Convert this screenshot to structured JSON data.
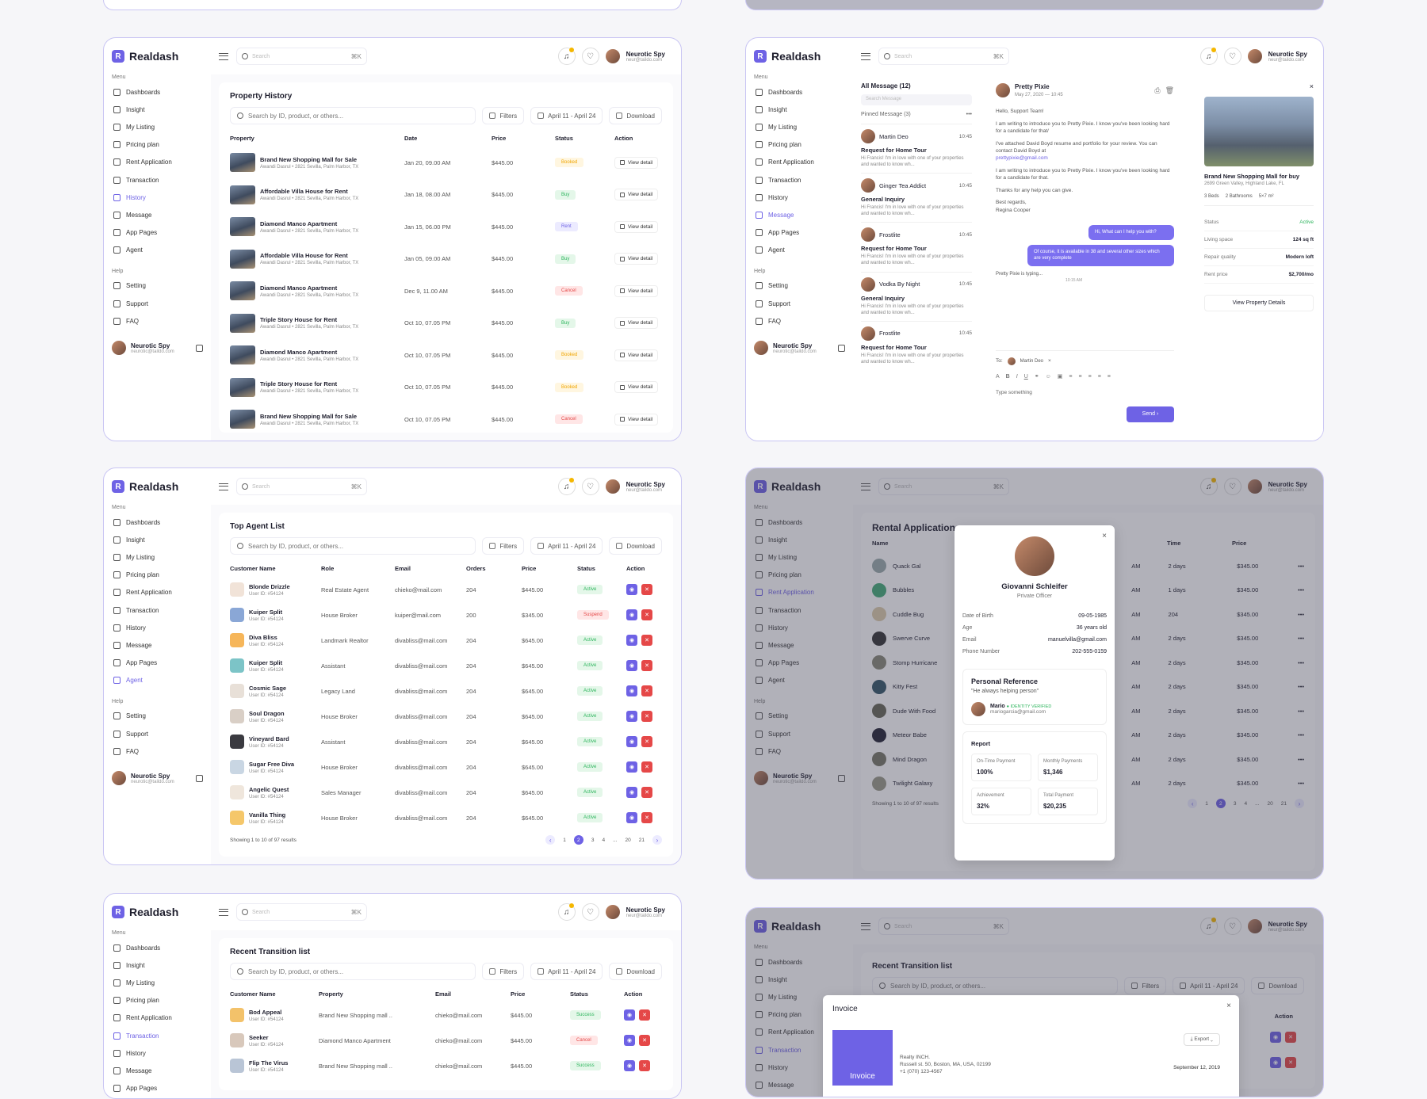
{
  "brand": "Realdash",
  "search": {
    "placeholder": "Search",
    "shortcut": "⌘K"
  },
  "user": {
    "name": "Neurotic Spy",
    "email": "neur@taildo.com",
    "email_side": "neurotic@taildo.com"
  },
  "sidebar": {
    "menu_label": "Menu",
    "help_label": "Help",
    "items": [
      "Dashboards",
      "Insight",
      "My Listing",
      "Pricing plan",
      "Rent Application",
      "Transaction",
      "History",
      "Message",
      "App Pages",
      "Agent"
    ],
    "help": [
      "Setting",
      "Support",
      "FAQ"
    ]
  },
  "toolbar": {
    "search_placeholder": "Search by ID, product, or others...",
    "filters": "Filters",
    "date_range": "April 11 - April 24",
    "download": "Download"
  },
  "history": {
    "title": "Property History",
    "columns": [
      "Property",
      "Date",
      "Price",
      "Status",
      "Action"
    ],
    "rows": [
      {
        "name": "Brand New Shopping Mall for Sale",
        "addr": "Awandi Dasrul  •  2821 Sevilla, Palm Harbor, TX",
        "date": "Jan 20, 09.00 AM",
        "price": "$445.00",
        "status": "Booked",
        "cls": "b-booked"
      },
      {
        "name": "Affordable Villa House for Rent",
        "addr": "Awandi Dasrul  •  2821 Sevilla, Palm Harbor, TX",
        "date": "Jan 18, 08.00 AM",
        "price": "$445.00",
        "status": "Buy",
        "cls": "b-buy"
      },
      {
        "name": "Diamond Manco Apartment",
        "addr": "Awandi Dasrul  •  2821 Sevilla, Palm Harbor, TX",
        "date": "Jan 15, 06.00 PM",
        "price": "$445.00",
        "status": "Rent",
        "cls": "b-rent"
      },
      {
        "name": "Affordable Villa House for Rent",
        "addr": "Awandi Dasrul  •  2821 Sevilla, Palm Harbor, TX",
        "date": "Jan 05, 09.00 AM",
        "price": "$445.00",
        "status": "Buy",
        "cls": "b-buy"
      },
      {
        "name": "Diamond Manco Apartment",
        "addr": "Awandi Dasrul  •  2821 Sevilla, Palm Harbor, TX",
        "date": "Dec 9, 11.00 AM",
        "price": "$445.00",
        "status": "Cancel",
        "cls": "b-cancel"
      },
      {
        "name": "Triple Story House for Rent",
        "addr": "Awandi Dasrul  •  2821 Sevilla, Palm Harbor, TX",
        "date": "Oct 10, 07.05 PM",
        "price": "$445.00",
        "status": "Buy",
        "cls": "b-buy"
      },
      {
        "name": "Diamond Manco Apartment",
        "addr": "Awandi Dasrul  •  2821 Sevilla, Palm Harbor, TX",
        "date": "Oct 10, 07.05 PM",
        "price": "$445.00",
        "status": "Booked",
        "cls": "b-booked"
      },
      {
        "name": "Triple Story House for Rent",
        "addr": "Awandi Dasrul  •  2821 Sevilla, Palm Harbor, TX",
        "date": "Oct 10, 07.05 PM",
        "price": "$445.00",
        "status": "Booked",
        "cls": "b-booked"
      },
      {
        "name": "Brand New Shopping Mall for Sale",
        "addr": "Awandi Dasrul  •  2821 Sevilla, Palm Harbor, TX",
        "date": "Oct 10, 07.05 PM",
        "price": "$445.00",
        "status": "Cancel",
        "cls": "b-cancel"
      }
    ],
    "view": "View detail"
  },
  "messages": {
    "all": "All Message (12)",
    "search": "Search Message",
    "pinned": "Pinned Message (3)",
    "items": [
      {
        "name": "Martin Deo",
        "time": "10:45",
        "subject": "Request for Home Tour",
        "body": "Hi Francis! I'm in love with one of your properties and wanted to know wh..."
      },
      {
        "name": "Ginger Tea Addict",
        "time": "10:45",
        "subject": "General Inquiry",
        "body": "Hi Francis! I'm in love with one of your properties and wanted to know wh..."
      },
      {
        "name": "Frostlite",
        "time": "10:45",
        "subject": "Request for Home Tour",
        "body": "Hi Francis! I'm in love with one of your properties and wanted to know wh..."
      },
      {
        "name": "Vodka By Night",
        "time": "10:45",
        "subject": "General Inquiry",
        "body": "Hi Francis! I'm in love with one of your properties and wanted to know wh..."
      },
      {
        "name": "Frostlite",
        "time": "10:45",
        "subject": "Request for Home Tour",
        "body": "Hi Francis! I'm in love with one of your properties and wanted to know wh..."
      }
    ],
    "chat": {
      "name": "Pretty Pixie",
      "date": "May 27, 2020 — 10:45",
      "greet": "Hello, Support Team!",
      "p1": "I am writing to introduce you to  Pretty Pixie. I know you've been looking hard for a candidate for that/",
      "p2": "I've attached David Boyd resume and portfolio for your review. You can contact David Boyd at",
      "email": "prettypixie@gmail.com",
      "p3": "I am writing to introduce you to  Pretty Pixie. I know you've been looking hard for a candidate for that.",
      "p4": "Thanks for any help you can give.",
      "sign1": "Best regards,",
      "sign2": "Regina Cooper",
      "b1": "Hi, What can I help you with?",
      "b2": "Of course, it is available in 38 and several other sizes which are very complete",
      "typing": "Pretty Pixie is typing...",
      "typetime": "10:15 AM",
      "to": "To:",
      "to_name": "Martin Deo",
      "compose": "Type something",
      "send": "Send"
    },
    "detail": {
      "title": "Brand New Shopping Mall for buy",
      "addr": "2699 Green Valley, Highland Lake, FL",
      "beds": "3 Beds",
      "baths": "2 Bathrooms",
      "size": "5×7 m²",
      "kv": [
        [
          "Status",
          "Active"
        ],
        [
          "Living space",
          "124 sq ft"
        ],
        [
          "Repair quality",
          "Modern loft"
        ],
        [
          "Rent price",
          "$2,700/mo"
        ]
      ],
      "btn": "View Property Details"
    }
  },
  "agents": {
    "title": "Top Agent List",
    "columns": [
      "Customer Name",
      "Role",
      "Email",
      "Orders",
      "Price",
      "Status",
      "Action"
    ],
    "rows": [
      {
        "name": "Blonde Drizzle",
        "uid": "User ID: #54124",
        "role": "Real Estate Agent",
        "email": "chieko@mail.com",
        "orders": "204",
        "price": "$445.00",
        "status": "Active",
        "cls": "b-active",
        "c": "#f1e3d8"
      },
      {
        "name": "Kuiper Split",
        "uid": "User ID: #54124",
        "role": "House Broker",
        "email": "kuiper@mail.com",
        "orders": "200",
        "price": "$345.00",
        "status": "Suspend",
        "cls": "b-suspend",
        "c": "#8aa7d6"
      },
      {
        "name": "Diva Bliss",
        "uid": "User ID: #54124",
        "role": "Landmark Realtor",
        "email": "divabliss@mail.com",
        "orders": "204",
        "price": "$645.00",
        "status": "Active",
        "cls": "b-active",
        "c": "#f6b65a"
      },
      {
        "name": "Kuiper Split",
        "uid": "User ID: #54124",
        "role": "Assistant",
        "email": "divabliss@mail.com",
        "orders": "204",
        "price": "$645.00",
        "status": "Active",
        "cls": "b-active",
        "c": "#7cc4c7"
      },
      {
        "name": "Cosmic Sage",
        "uid": "User ID: #54124",
        "role": "Legacy Land",
        "email": "divabliss@mail.com",
        "orders": "204",
        "price": "$645.00",
        "status": "Active",
        "cls": "b-active",
        "c": "#e8e0d8"
      },
      {
        "name": "Soul Dragon",
        "uid": "User ID: #54124",
        "role": "House Broker",
        "email": "divabliss@mail.com",
        "orders": "204",
        "price": "$645.00",
        "status": "Active",
        "cls": "b-active",
        "c": "#d9cfc6"
      },
      {
        "name": "Vineyard Bard",
        "uid": "User ID: #54124",
        "role": "Assistant",
        "email": "divabliss@mail.com",
        "orders": "204",
        "price": "$645.00",
        "status": "Active",
        "cls": "b-active",
        "c": "#3a3a40"
      },
      {
        "name": "Sugar Free Diva",
        "uid": "User ID: #54124",
        "role": "House Broker",
        "email": "divabliss@mail.com",
        "orders": "204",
        "price": "$645.00",
        "status": "Active",
        "cls": "b-active",
        "c": "#c9d6e3"
      },
      {
        "name": "Angelic Quest",
        "uid": "User ID: #54124",
        "role": "Sales Manager",
        "email": "divabliss@mail.com",
        "orders": "204",
        "price": "$645.00",
        "status": "Active",
        "cls": "b-active",
        "c": "#efe6dc"
      },
      {
        "name": "Vanilla Thing",
        "uid": "User ID: #54124",
        "role": "House Broker",
        "email": "divabliss@mail.com",
        "orders": "204",
        "price": "$645.00",
        "status": "Active",
        "cls": "b-active",
        "c": "#f5c76a"
      }
    ],
    "showing": "Showing 1 to 10 of 97 results",
    "pages": [
      "1",
      "2",
      "3",
      "4",
      "...",
      "20",
      "21"
    ]
  },
  "rental": {
    "title": "Rental Application",
    "col_name": "Name",
    "col_time": "Time",
    "col_price": "Price",
    "rows": [
      {
        "name": "Quack Gal",
        "am": "AM",
        "time": "2 days",
        "price": "$345.00"
      },
      {
        "name": "Bubbles",
        "am": "AM",
        "time": "1 days",
        "price": "$345.00"
      },
      {
        "name": "Cuddle Bug",
        "am": "AM",
        "time": "204",
        "price": "$345.00"
      },
      {
        "name": "Swerve Curve",
        "am": "AM",
        "time": "2 days",
        "price": "$345.00"
      },
      {
        "name": "Stomp Hurricane",
        "am": "AM",
        "time": "2 days",
        "price": "$345.00"
      },
      {
        "name": "Kitty Fest",
        "am": "AM",
        "time": "2 days",
        "price": "$345.00"
      },
      {
        "name": "Dude With Food",
        "am": "AM",
        "time": "2 days",
        "price": "$345.00"
      },
      {
        "name": "Meteor Babe",
        "am": "AM",
        "time": "2 days",
        "price": "$345.00"
      },
      {
        "name": "Mind Dragon",
        "am": "AM",
        "time": "2 days",
        "price": "$345.00"
      },
      {
        "name": "Twilight Galaxy",
        "am": "AM",
        "time": "2 days",
        "price": "$345.00"
      }
    ],
    "showing": "Showing 1 to 10 of 97 results",
    "pages": [
      "1",
      "2",
      "3",
      "4",
      "...",
      "20",
      "21"
    ],
    "modal": {
      "name": "Giovanni Schleifer",
      "role": "Private Officer",
      "kv": [
        [
          "Date of Birth",
          "09-05-1985"
        ],
        [
          "Age",
          "36 years old"
        ],
        [
          "Email",
          "manuelvilla@gmail.com"
        ],
        [
          "Phone Number",
          "202-555-0159"
        ]
      ],
      "ref_title": "Personal Reference",
      "quote": "\"He always helping person\"",
      "ref_name": "Mario",
      "verified": "IDENTITY VERIFIED",
      "ref_email": "mariogarcia@gmail.com",
      "report": "Report",
      "stats": [
        [
          "On-Time Payment",
          "100%"
        ],
        [
          "Monthly Payments",
          "$1,346"
        ],
        [
          "Achievement",
          "32%"
        ],
        [
          "Total Payment",
          "$20,235"
        ]
      ]
    }
  },
  "transitions": {
    "title": "Recent Transition list",
    "columns": [
      "Customer Name",
      "Property",
      "Email",
      "Price",
      "Status",
      "Action"
    ],
    "rows": [
      {
        "name": "Bod Appeal",
        "uid": "User ID: #54124",
        "prop": "Brand New Shopping mall ..",
        "email": "chieko@mail.com",
        "price": "$445.00",
        "status": "Success",
        "cls": "b-success",
        "c": "#f3c26a"
      },
      {
        "name": "Seeker",
        "uid": "User ID: #54124",
        "prop": "Diamond Manco Apartment",
        "email": "chieko@mail.com",
        "price": "$445.00",
        "status": "Cancel",
        "cls": "b-cancel",
        "c": "#d8c8bb"
      },
      {
        "name": "Flip The Virus",
        "uid": "User ID: #54124",
        "prop": "Brand New Shopping mall ..",
        "email": "chieko@mail.com",
        "price": "$445.00",
        "status": "Success",
        "cls": "b-success",
        "c": "#b9c5d6"
      }
    ]
  },
  "invoice": {
    "title": "Invoice",
    "export": "Export",
    "banner": "Invoice",
    "company": "Realty INCH.",
    "addr": "Russell st. 50, Boston, MA, USA, 02199",
    "phone": "+1 (070) 123-4567",
    "date": "September 12, 2019",
    "action": "Action"
  }
}
